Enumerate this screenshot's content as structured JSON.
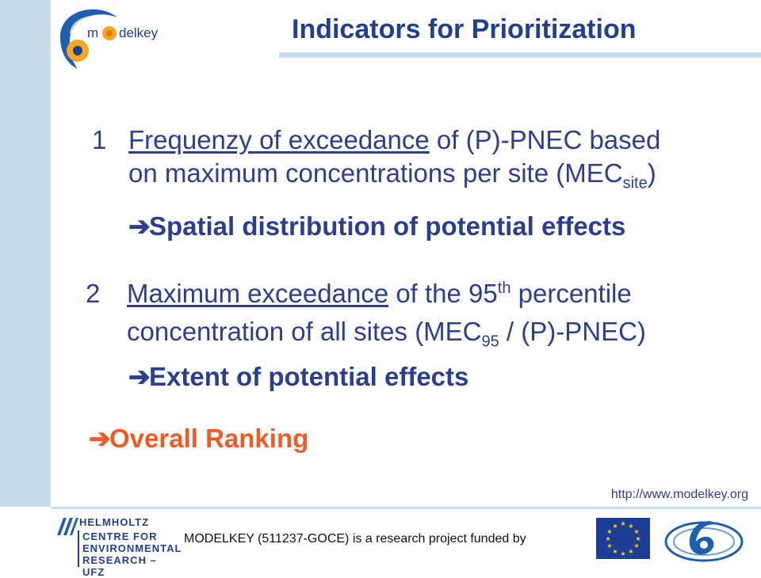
{
  "header": {
    "title": "Indicators for Prioritization",
    "logo_text_left": "m",
    "logo_text_right": "delkey"
  },
  "items": [
    {
      "number": "1",
      "underlined": "Frequenzy of exceedance",
      "rest_line1": " of (P)-PNEC based",
      "line2_a": "on maximum concentrations per site (MEC",
      "line2_sub": "site",
      "line2_b": ")",
      "conclusion": "Spatial distribution of potential effects"
    },
    {
      "number": "2",
      "underlined": "Maximum exceedance",
      "rest_line1_a": " of the 95",
      "rest_line1_sup": "th",
      "rest_line1_b": " percentile",
      "line2_a": "concentration of all sites  (MEC",
      "line2_sub": "95",
      "line2_b": " / (P)-PNEC)",
      "conclusion": "Extent of potential effects"
    }
  ],
  "overall": "Overall Ranking",
  "footer": {
    "url": "http://www.modelkey.org",
    "funded": "MODELKEY (511237-GOCE) is a research project funded by",
    "helmholtz_lines": [
      "HELMHOLTZ",
      "CENTRE FOR",
      "ENVIRONMENTAL",
      "RESEARCH – UFZ"
    ]
  },
  "colors": {
    "accent": "#1f3f8f",
    "highlight": "#f05a26",
    "sidebar": "#c9dbef"
  }
}
